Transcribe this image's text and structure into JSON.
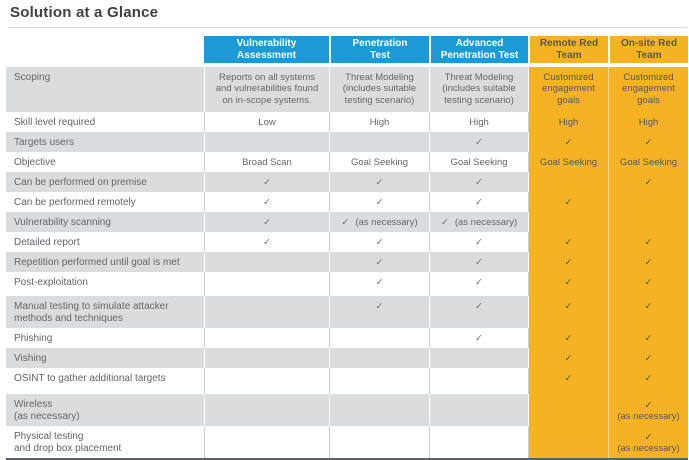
{
  "page_title": "Solution at a Glance",
  "colors": {
    "header_blue": "#1C9AD6",
    "header_yellow": "#F5B324",
    "row_stripe_gray": "#DBDCDD",
    "body_text_gray": "#64656A",
    "yellow_cell_text": "#56575B",
    "check_gray": "#6F7073",
    "bottom_rule": "#5C6068"
  },
  "check_symbol": "✓",
  "table": {
    "columns": [
      {
        "id": "vulnerability-assessment",
        "label": "Vulnerability\nAssessment",
        "style": "blue"
      },
      {
        "id": "penetration-test",
        "label": "Penetration\nTest",
        "style": "blue"
      },
      {
        "id": "advanced-penetration-test",
        "label": "Advanced\nPenetration Test",
        "style": "blue"
      },
      {
        "id": "remote-red-team",
        "label": "Remote Red\nTeam",
        "style": "yellow"
      },
      {
        "id": "on-site-red-team",
        "label": "On-site Red\nTeam",
        "style": "yellow"
      }
    ],
    "rows": [
      {
        "label": "Scoping",
        "cells": [
          {
            "text": "Reports on all systems\nand vulnerabilities found\non in-scope systems."
          },
          {
            "text": "Threat Modeling\n(includes suitable\ntesting scenario)"
          },
          {
            "text": "Threat Modeling\n(includes suitable\ntesting scenario)"
          },
          {
            "text": "Customized\nengagement\ngoals"
          },
          {
            "text": "Customized\nengagement\ngoals"
          }
        ]
      },
      {
        "label": "Skill level required",
        "cells": [
          {
            "text": "Low"
          },
          {
            "text": "High"
          },
          {
            "text": "High"
          },
          {
            "text": "High"
          },
          {
            "text": "High"
          }
        ]
      },
      {
        "label": "Targets users",
        "cells": [
          {},
          {},
          {
            "check": true
          },
          {
            "check": true
          },
          {
            "check": true
          }
        ]
      },
      {
        "label": "Objective",
        "cells": [
          {
            "text": "Broad Scan"
          },
          {
            "text": "Goal Seeking"
          },
          {
            "text": "Goal Seeking"
          },
          {
            "text": "Goal Seeking"
          },
          {
            "text": "Goal Seeking"
          }
        ]
      },
      {
        "label": "Can be performed on premise",
        "cells": [
          {
            "check": true
          },
          {
            "check": true
          },
          {
            "check": true
          },
          {},
          {
            "check": true
          }
        ]
      },
      {
        "label": "Can be performed remotely",
        "cells": [
          {
            "check": true
          },
          {
            "check": true
          },
          {
            "check": true
          },
          {
            "check": true
          },
          {}
        ]
      },
      {
        "label": "Vulnerability scanning",
        "cells": [
          {
            "check": true
          },
          {
            "check": true,
            "note": "(as necessary)"
          },
          {
            "check": true,
            "note": "(as necessary)"
          },
          {},
          {}
        ]
      },
      {
        "label": "Detailed report",
        "cells": [
          {
            "check": true
          },
          {
            "check": true
          },
          {
            "check": true
          },
          {
            "check": true
          },
          {
            "check": true
          }
        ]
      },
      {
        "label": "Repetition performed until goal is met",
        "cells": [
          {},
          {
            "check": true
          },
          {
            "check": true
          },
          {
            "check": true
          },
          {
            "check": true
          }
        ]
      },
      {
        "label": "Post-exploitation",
        "cells": [
          {},
          {
            "check": true
          },
          {
            "check": true
          },
          {
            "check": true
          },
          {
            "check": true
          }
        ]
      },
      {
        "label": "Manual testing to simulate attacker\nmethods and techniques",
        "cells": [
          {},
          {
            "check": true
          },
          {
            "check": true
          },
          {
            "check": true
          },
          {
            "check": true
          }
        ]
      },
      {
        "label": "Phishing",
        "cells": [
          {},
          {},
          {
            "check": true
          },
          {
            "check": true
          },
          {
            "check": true
          }
        ]
      },
      {
        "label": "Vishing",
        "cells": [
          {},
          {},
          {},
          {
            "check": true
          },
          {
            "check": true
          }
        ]
      },
      {
        "label": "OSINT to gather additional targets",
        "cells": [
          {},
          {},
          {},
          {
            "check": true
          },
          {
            "check": true
          }
        ]
      },
      {
        "label": "Wireless\n(as necessary)",
        "cells": [
          {},
          {},
          {},
          {},
          {
            "check": true,
            "note": "(as necessary)",
            "stacked": true
          }
        ]
      },
      {
        "label": "Physical testing\nand drop box placement",
        "cells": [
          {},
          {},
          {},
          {},
          {
            "check": true,
            "note": "(as necessary)",
            "stacked": true
          }
        ]
      }
    ]
  }
}
